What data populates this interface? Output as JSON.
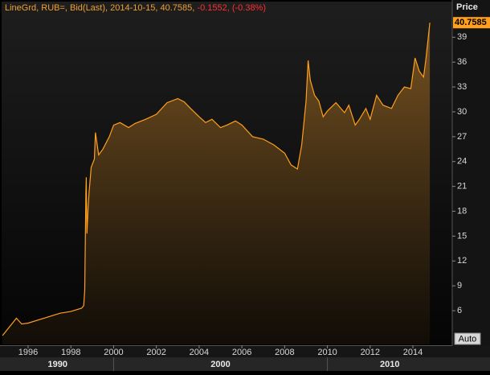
{
  "chart_data": {
    "type": "area",
    "title": "LineGrd, RUB=, Bid(Last), 2014-10-15, 40.7585,",
    "subtitle": "-0.1552, (-0.38%)",
    "y_label": "Price",
    "last_price": 40.7585,
    "button": "Auto",
    "color": "#ff9f1c",
    "x": [
      1994.8,
      1995.3,
      1995.45,
      1995.7,
      1996.0,
      1997.0,
      1997.5,
      1998.0,
      1998.5,
      1998.6,
      1998.65,
      1998.7,
      1998.72,
      1998.75,
      1998.8,
      1998.85,
      1998.95,
      1999.1,
      1999.15,
      1999.3,
      1999.5,
      1999.8,
      2000.0,
      2000.3,
      2000.7,
      2001.0,
      2001.5,
      2002.0,
      2002.5,
      2003.0,
      2003.3,
      2003.6,
      2004.0,
      2004.3,
      2004.6,
      2005.0,
      2005.3,
      2005.7,
      2006.0,
      2006.5,
      2007.0,
      2007.5,
      2008.0,
      2008.3,
      2008.6,
      2008.8,
      2009.0,
      2009.1,
      2009.2,
      2009.4,
      2009.6,
      2009.8,
      2010.0,
      2010.4,
      2010.8,
      2011.0,
      2011.3,
      2011.5,
      2011.8,
      2012.0,
      2012.3,
      2012.6,
      2013.0,
      2013.3,
      2013.6,
      2013.9,
      2014.1,
      2014.3,
      2014.5,
      2014.6,
      2014.7,
      2014.79
    ],
    "values": [
      3.0,
      4.6,
      5.1,
      4.4,
      4.5,
      5.3,
      5.7,
      5.9,
      6.3,
      6.6,
      8.5,
      20.2,
      22.1,
      15.3,
      18.0,
      20.2,
      23.3,
      24.3,
      27.5,
      24.8,
      25.5,
      27.0,
      28.4,
      28.7,
      28.1,
      28.6,
      29.1,
      29.7,
      31.1,
      31.6,
      31.2,
      30.4,
      29.4,
      28.7,
      29.1,
      28.1,
      28.4,
      28.9,
      28.4,
      27.0,
      26.7,
      26.0,
      25.0,
      23.6,
      23.1,
      26.0,
      31.3,
      36.2,
      33.8,
      32.0,
      31.3,
      29.4,
      30.1,
      31.1,
      29.9,
      30.8,
      28.4,
      29.1,
      30.4,
      29.1,
      32.0,
      30.8,
      30.4,
      32.0,
      33.0,
      32.8,
      36.5,
      34.9,
      34.2,
      36.2,
      38.6,
      40.7585
    ],
    "xlim": [
      1994.76,
      2015.84
    ],
    "xticks": [
      1996,
      1998,
      2000,
      2002,
      2004,
      2006,
      2008,
      2010,
      2012,
      2014
    ],
    "decade_labels": [
      {
        "value": 1990,
        "label": "1990"
      },
      {
        "value": 2000,
        "label": "2000"
      },
      {
        "value": 2010,
        "label": "2010"
      }
    ],
    "ylim": [
      1.93,
      43.3
    ],
    "yticks": [
      6,
      9,
      12,
      15,
      18,
      21,
      24,
      27,
      30,
      33,
      36,
      39
    ]
  }
}
